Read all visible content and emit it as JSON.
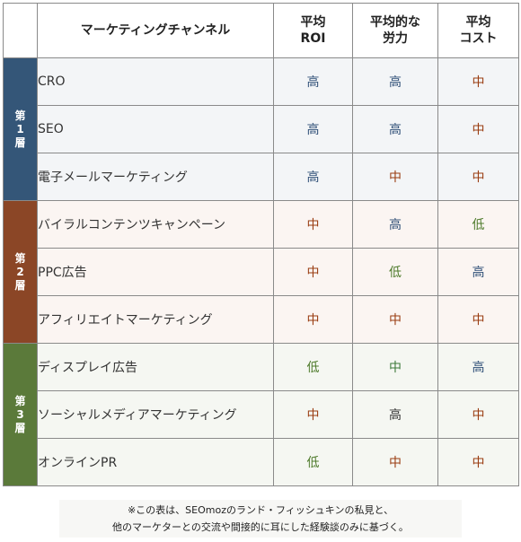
{
  "header": {
    "channel": "マーケティングチャンネル",
    "roi": [
      "平均",
      "ROI"
    ],
    "effort": [
      "平均的な",
      "労力"
    ],
    "cost": [
      "平均",
      "コスト"
    ]
  },
  "tiers": [
    {
      "label": [
        "第",
        "1",
        "層"
      ]
    },
    {
      "label": [
        "第",
        "2",
        "層"
      ]
    },
    {
      "label": [
        "第",
        "3",
        "層"
      ]
    }
  ],
  "rows": [
    {
      "channel": "CRO",
      "roi": "高",
      "effort": "高",
      "cost": "中"
    },
    {
      "channel": "SEO",
      "roi": "高",
      "effort": "高",
      "cost": "中"
    },
    {
      "channel": "電子メールマーケティング",
      "roi": "高",
      "effort": "中",
      "cost": "中"
    },
    {
      "channel": "バイラルコンテンツキャンペーン",
      "roi": "中",
      "effort": "高",
      "cost": "低"
    },
    {
      "channel": "PPC広告",
      "roi": "中",
      "effort": "低",
      "cost": "高"
    },
    {
      "channel": "アフィリエイトマーケティング",
      "roi": "中",
      "effort": "中",
      "cost": "中"
    },
    {
      "channel": "ディスプレイ広告",
      "roi": "低",
      "effort": "中",
      "cost": "高"
    },
    {
      "channel": "ソーシャルメディアマーケティング",
      "roi": "中",
      "effort": "高",
      "cost": "中"
    },
    {
      "channel": "オンラインPR",
      "roi": "低",
      "effort": "中",
      "cost": "中"
    }
  ],
  "note": [
    "※この表は、SEOmozのランド・フィッシュキンの私見と、",
    "他のマーケターとの交流や間接的に耳にした経験談のみに基づく。"
  ],
  "colors": {
    "tier1": "#345678",
    "tier2": "#8b4626",
    "tier3": "#5b7a3a",
    "high": "#2f4f77",
    "mid": "#9a3d12",
    "low": "#4d7a2a"
  }
}
